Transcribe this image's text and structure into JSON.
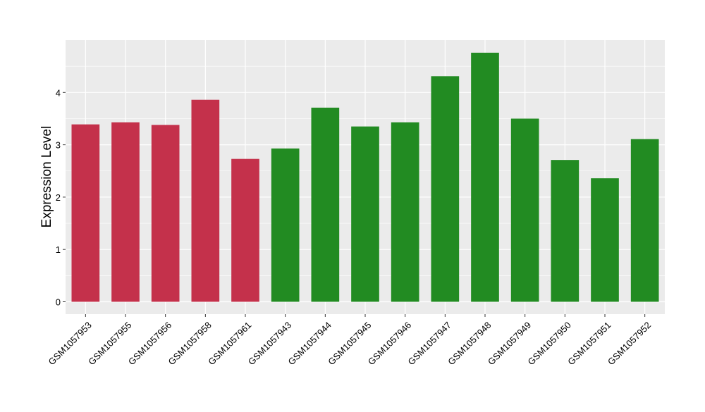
{
  "chart_data": {
    "type": "bar",
    "ylabel": "Expression Level",
    "xlabel": "",
    "title": "",
    "ylim": [
      -0.2,
      4.8
    ],
    "yticks": [
      0,
      1,
      2,
      3,
      4
    ],
    "grid": true,
    "panel_background": "#EBEBEB",
    "grid_color": "#FFFFFF",
    "categories": [
      "GSM1057953",
      "GSM1057955",
      "GSM1057956",
      "GSM1057958",
      "GSM1057961",
      "GSM1057943",
      "GSM1057944",
      "GSM1057945",
      "GSM1057946",
      "GSM1057947",
      "GSM1057948",
      "GSM1057949",
      "GSM1057950",
      "GSM1057951",
      "GSM1057952"
    ],
    "values": [
      3.39,
      3.43,
      3.38,
      3.86,
      2.73,
      2.93,
      3.71,
      3.35,
      3.43,
      4.31,
      4.76,
      3.5,
      2.71,
      2.36,
      3.11
    ],
    "bar_colors": [
      "#C4314B",
      "#C4314B",
      "#C4314B",
      "#C4314B",
      "#C4314B",
      "#228B22",
      "#228B22",
      "#228B22",
      "#228B22",
      "#228B22",
      "#228B22",
      "#228B22",
      "#228B22",
      "#228B22",
      "#228B22"
    ]
  }
}
